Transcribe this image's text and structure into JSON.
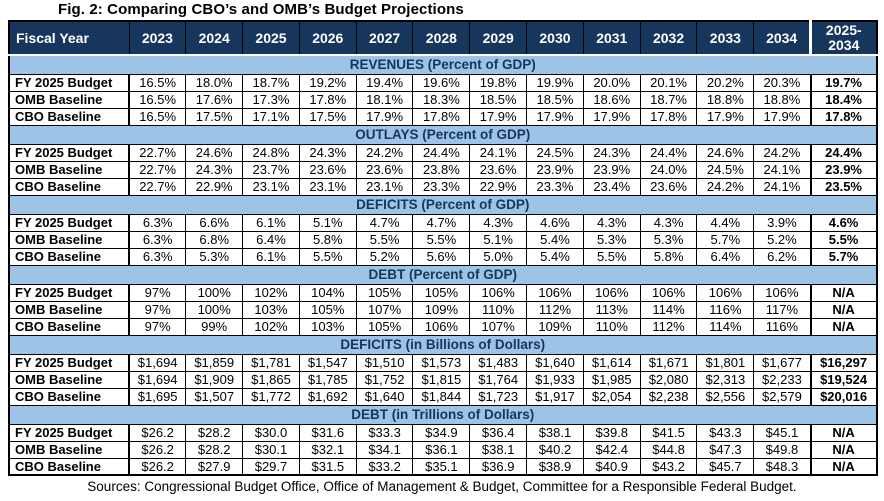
{
  "title": "Fig. 2: Comparing CBO’s and OMB’s Budget Projections",
  "footer": "Sources: Congressional Budget Office, Office of Management & Budget, Committee for a Responsible Federal Budget.",
  "colors": {
    "header_bg": "#17365D",
    "header_text": "#FFFFFF",
    "section_bg": "#9DC3E6",
    "section_text": "#17365D",
    "border": "#000000",
    "cell_bg": "#FFFFFF"
  },
  "chart_data": {
    "type": "table",
    "title": "Fig. 2: Comparing CBO’s and OMB’s Budget Projections",
    "columns": [
      "Fiscal Year",
      "2023",
      "2024",
      "2025",
      "2026",
      "2027",
      "2028",
      "2029",
      "2030",
      "2031",
      "2032",
      "2033",
      "2034",
      "2025-2034"
    ],
    "sections": [
      {
        "title": "REVENUES (Percent of GDP)",
        "rows": [
          {
            "label": "FY 2025 Budget",
            "values": [
              "16.5%",
              "18.0%",
              "18.7%",
              "19.2%",
              "19.4%",
              "19.6%",
              "19.8%",
              "19.9%",
              "20.0%",
              "20.1%",
              "20.2%",
              "20.3%"
            ],
            "total": "19.7%"
          },
          {
            "label": "OMB Baseline",
            "values": [
              "16.5%",
              "17.6%",
              "17.3%",
              "17.8%",
              "18.1%",
              "18.3%",
              "18.5%",
              "18.5%",
              "18.6%",
              "18.7%",
              "18.8%",
              "18.8%"
            ],
            "total": "18.4%"
          },
          {
            "label": "CBO Baseline",
            "values": [
              "16.5%",
              "17.5%",
              "17.1%",
              "17.5%",
              "17.9%",
              "17.8%",
              "17.9%",
              "17.9%",
              "17.9%",
              "17.8%",
              "17.9%",
              "17.9%"
            ],
            "total": "17.8%"
          }
        ]
      },
      {
        "title": "OUTLAYS (Percent of GDP)",
        "rows": [
          {
            "label": "FY 2025 Budget",
            "values": [
              "22.7%",
              "24.6%",
              "24.8%",
              "24.3%",
              "24.2%",
              "24.4%",
              "24.1%",
              "24.5%",
              "24.3%",
              "24.4%",
              "24.6%",
              "24.2%"
            ],
            "total": "24.4%"
          },
          {
            "label": "OMB Baseline",
            "values": [
              "22.7%",
              "24.3%",
              "23.7%",
              "23.6%",
              "23.6%",
              "23.8%",
              "23.6%",
              "23.9%",
              "23.9%",
              "24.0%",
              "24.5%",
              "24.1%"
            ],
            "total": "23.9%"
          },
          {
            "label": "CBO Baseline",
            "values": [
              "22.7%",
              "22.9%",
              "23.1%",
              "23.1%",
              "23.1%",
              "23.3%",
              "22.9%",
              "23.3%",
              "23.4%",
              "23.6%",
              "24.2%",
              "24.1%"
            ],
            "total": "23.5%"
          }
        ]
      },
      {
        "title": "DEFICITS (Percent of GDP)",
        "rows": [
          {
            "label": "FY 2025 Budget",
            "values": [
              "6.3%",
              "6.6%",
              "6.1%",
              "5.1%",
              "4.7%",
              "4.7%",
              "4.3%",
              "4.6%",
              "4.3%",
              "4.3%",
              "4.4%",
              "3.9%"
            ],
            "total": "4.6%"
          },
          {
            "label": "OMB Baseline",
            "values": [
              "6.3%",
              "6.8%",
              "6.4%",
              "5.8%",
              "5.5%",
              "5.5%",
              "5.1%",
              "5.4%",
              "5.3%",
              "5.3%",
              "5.7%",
              "5.2%"
            ],
            "total": "5.5%"
          },
          {
            "label": "CBO Baseline",
            "values": [
              "6.3%",
              "5.3%",
              "6.1%",
              "5.5%",
              "5.2%",
              "5.6%",
              "5.0%",
              "5.4%",
              "5.5%",
              "5.8%",
              "6.4%",
              "6.2%"
            ],
            "total": "5.7%"
          }
        ]
      },
      {
        "title": "DEBT (Percent of GDP)",
        "rows": [
          {
            "label": "FY 2025 Budget",
            "values": [
              "97%",
              "100%",
              "102%",
              "104%",
              "105%",
              "105%",
              "106%",
              "106%",
              "106%",
              "106%",
              "106%",
              "106%"
            ],
            "total": "N/A"
          },
          {
            "label": "OMB Baseline",
            "values": [
              "97%",
              "100%",
              "103%",
              "105%",
              "107%",
              "109%",
              "110%",
              "112%",
              "113%",
              "114%",
              "116%",
              "117%"
            ],
            "total": "N/A"
          },
          {
            "label": "CBO Baseline",
            "values": [
              "97%",
              "99%",
              "102%",
              "103%",
              "105%",
              "106%",
              "107%",
              "109%",
              "110%",
              "112%",
              "114%",
              "116%"
            ],
            "total": "N/A"
          }
        ]
      },
      {
        "title": "DEFICITS (in Billions of Dollars)",
        "rows": [
          {
            "label": "FY 2025 Budget",
            "values": [
              "$1,694",
              "$1,859",
              "$1,781",
              "$1,547",
              "$1,510",
              "$1,573",
              "$1,483",
              "$1,640",
              "$1,614",
              "$1,671",
              "$1,801",
              "$1,677"
            ],
            "total": "$16,297"
          },
          {
            "label": "OMB Baseline",
            "values": [
              "$1,694",
              "$1,909",
              "$1,865",
              "$1,785",
              "$1,752",
              "$1,815",
              "$1,764",
              "$1,933",
              "$1,985",
              "$2,080",
              "$2,313",
              "$2,233"
            ],
            "total": "$19,524"
          },
          {
            "label": "CBO Baseline",
            "values": [
              "$1,695",
              "$1,507",
              "$1,772",
              "$1,692",
              "$1,640",
              "$1,844",
              "$1,723",
              "$1,917",
              "$2,054",
              "$2,238",
              "$2,556",
              "$2,579"
            ],
            "total": "$20,016"
          }
        ]
      },
      {
        "title": "DEBT (in Trillions of Dollars)",
        "rows": [
          {
            "label": "FY 2025 Budget",
            "values": [
              "$26.2",
              "$28.2",
              "$30.0",
              "$31.6",
              "$33.3",
              "$34.9",
              "$36.4",
              "$38.1",
              "$39.8",
              "$41.5",
              "$43.3",
              "$45.1"
            ],
            "total": "N/A"
          },
          {
            "label": "OMB Baseline",
            "values": [
              "$26.2",
              "$28.2",
              "$30.1",
              "$32.1",
              "$34.1",
              "$36.1",
              "$38.1",
              "$40.2",
              "$42.4",
              "$44.8",
              "$47.3",
              "$49.8"
            ],
            "total": "N/A"
          },
          {
            "label": "CBO Baseline",
            "values": [
              "$26.2",
              "$27.9",
              "$29.7",
              "$31.5",
              "$33.2",
              "$35.1",
              "$36.9",
              "$38.9",
              "$40.9",
              "$43.2",
              "$45.7",
              "$48.3"
            ],
            "total": "N/A"
          }
        ]
      }
    ]
  }
}
